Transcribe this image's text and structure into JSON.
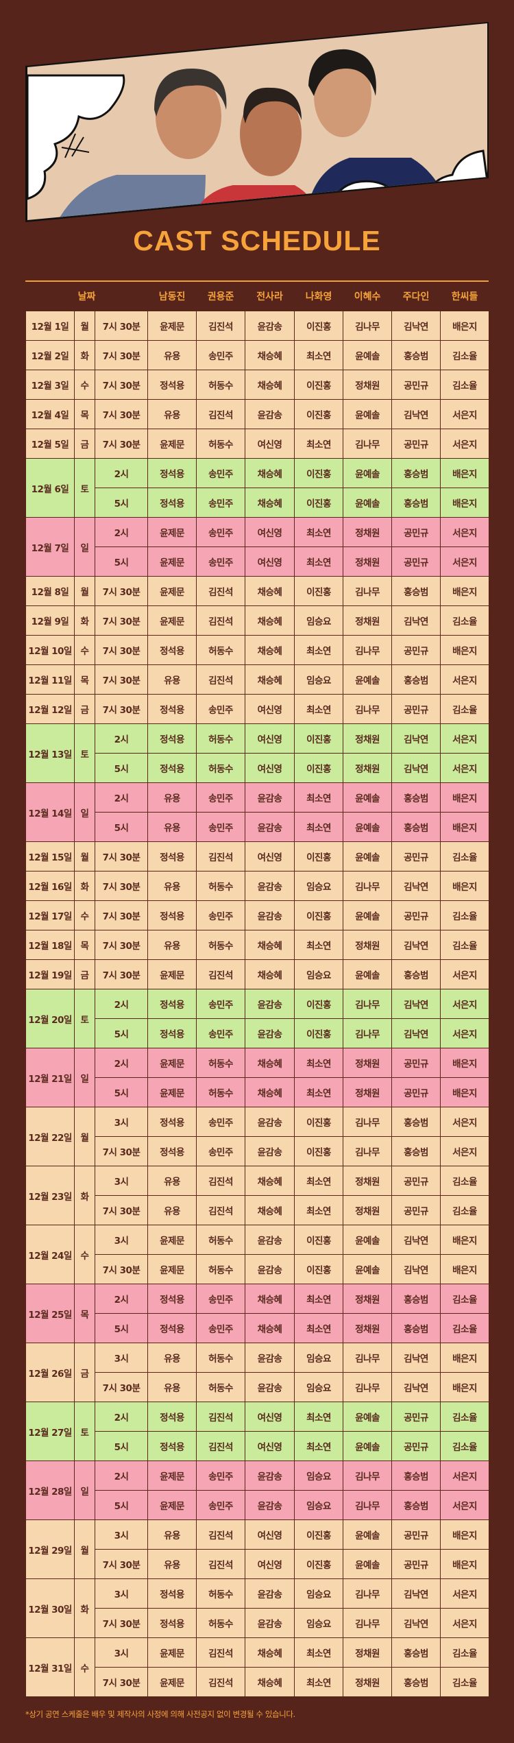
{
  "title": "CAST SCHEDULE",
  "colors": {
    "background": "#57241c",
    "accent": "#f5a33a",
    "weekday": "#f7d7ae",
    "saturday": "#c9eb9b",
    "holiday": "#f5a5b3",
    "text": "#5a2a1e"
  },
  "banner": {
    "image": "three-cast-members-photo",
    "decoration": "comic-cloud-icons"
  },
  "header": {
    "date": "날짜",
    "cast": [
      "남동진",
      "권용준",
      "전사라",
      "나화영",
      "이혜수",
      "주다인",
      "한씨들"
    ]
  },
  "days": [
    {
      "date": "12월 1일",
      "dow": "월",
      "color": "weekday",
      "shows": [
        {
          "time": "7시 30분",
          "cast": [
            "윤제문",
            "김진석",
            "윤감송",
            "이진홍",
            "김나무",
            "김낙연",
            "배은지"
          ]
        }
      ]
    },
    {
      "date": "12월 2일",
      "dow": "화",
      "color": "weekday",
      "shows": [
        {
          "time": "7시 30분",
          "cast": [
            "유용",
            "송민주",
            "채승혜",
            "최소연",
            "윤예솔",
            "홍승범",
            "김소율"
          ]
        }
      ]
    },
    {
      "date": "12월 3일",
      "dow": "수",
      "color": "weekday",
      "shows": [
        {
          "time": "7시 30분",
          "cast": [
            "정석용",
            "허동수",
            "채승혜",
            "이진홍",
            "정채원",
            "공민규",
            "김소율"
          ]
        }
      ]
    },
    {
      "date": "12월 4일",
      "dow": "목",
      "color": "weekday",
      "shows": [
        {
          "time": "7시 30분",
          "cast": [
            "유용",
            "김진석",
            "윤감송",
            "이진홍",
            "윤예솔",
            "김낙연",
            "서은지"
          ]
        }
      ]
    },
    {
      "date": "12월 5일",
      "dow": "금",
      "color": "weekday",
      "shows": [
        {
          "time": "7시 30분",
          "cast": [
            "윤제문",
            "허동수",
            "여신영",
            "최소연",
            "김나무",
            "공민규",
            "서은지"
          ]
        }
      ]
    },
    {
      "date": "12월 6일",
      "dow": "토",
      "color": "saturday",
      "shows": [
        {
          "time": "2시",
          "cast": [
            "정석용",
            "송민주",
            "채승혜",
            "이진홍",
            "윤예솔",
            "홍승범",
            "배은지"
          ]
        },
        {
          "time": "5시",
          "cast": [
            "정석용",
            "송민주",
            "채승혜",
            "이진홍",
            "윤예솔",
            "홍승범",
            "배은지"
          ]
        }
      ]
    },
    {
      "date": "12월 7일",
      "dow": "일",
      "color": "holiday",
      "shows": [
        {
          "time": "2시",
          "cast": [
            "윤제문",
            "송민주",
            "여신영",
            "최소연",
            "정채원",
            "공민규",
            "서은지"
          ]
        },
        {
          "time": "5시",
          "cast": [
            "윤제문",
            "송민주",
            "여신영",
            "최소연",
            "정채원",
            "공민규",
            "서은지"
          ]
        }
      ]
    },
    {
      "date": "12월 8일",
      "dow": "월",
      "color": "weekday",
      "shows": [
        {
          "time": "7시 30분",
          "cast": [
            "윤제문",
            "김진석",
            "채승혜",
            "이진홍",
            "김나무",
            "홍승범",
            "배은지"
          ]
        }
      ]
    },
    {
      "date": "12월 9일",
      "dow": "화",
      "color": "weekday",
      "shows": [
        {
          "time": "7시 30분",
          "cast": [
            "윤제문",
            "김진석",
            "채승혜",
            "임승요",
            "정채원",
            "김낙연",
            "김소율"
          ]
        }
      ]
    },
    {
      "date": "12월 10일",
      "dow": "수",
      "color": "weekday",
      "shows": [
        {
          "time": "7시 30분",
          "cast": [
            "정석용",
            "허동수",
            "채승혜",
            "최소연",
            "김나무",
            "공민규",
            "배은지"
          ]
        }
      ]
    },
    {
      "date": "12월 11일",
      "dow": "목",
      "color": "weekday",
      "shows": [
        {
          "time": "7시 30분",
          "cast": [
            "유용",
            "김진석",
            "채승혜",
            "임승요",
            "윤예솔",
            "홍승범",
            "서은지"
          ]
        }
      ]
    },
    {
      "date": "12월 12일",
      "dow": "금",
      "color": "weekday",
      "shows": [
        {
          "time": "7시 30분",
          "cast": [
            "정석용",
            "송민주",
            "여신영",
            "최소연",
            "김나무",
            "공민규",
            "김소율"
          ]
        }
      ]
    },
    {
      "date": "12월 13일",
      "dow": "토",
      "color": "saturday",
      "shows": [
        {
          "time": "2시",
          "cast": [
            "정석용",
            "허동수",
            "여신영",
            "이진홍",
            "정채원",
            "김낙연",
            "서은지"
          ]
        },
        {
          "time": "5시",
          "cast": [
            "정석용",
            "허동수",
            "여신영",
            "이진홍",
            "정채원",
            "김낙연",
            "서은지"
          ]
        }
      ]
    },
    {
      "date": "12월 14일",
      "dow": "일",
      "color": "holiday",
      "shows": [
        {
          "time": "2시",
          "cast": [
            "유용",
            "송민주",
            "윤감송",
            "최소연",
            "윤예솔",
            "홍승범",
            "배은지"
          ]
        },
        {
          "time": "5시",
          "cast": [
            "유용",
            "송민주",
            "윤감송",
            "최소연",
            "윤예솔",
            "홍승범",
            "배은지"
          ]
        }
      ]
    },
    {
      "date": "12월 15일",
      "dow": "월",
      "color": "weekday",
      "shows": [
        {
          "time": "7시 30분",
          "cast": [
            "정석용",
            "김진석",
            "여신영",
            "이진홍",
            "윤예솔",
            "공민규",
            "김소율"
          ]
        }
      ]
    },
    {
      "date": "12월 16일",
      "dow": "화",
      "color": "weekday",
      "shows": [
        {
          "time": "7시 30분",
          "cast": [
            "유용",
            "허동수",
            "윤감송",
            "임승요",
            "김나무",
            "김낙연",
            "배은지"
          ]
        }
      ]
    },
    {
      "date": "12월 17일",
      "dow": "수",
      "color": "weekday",
      "shows": [
        {
          "time": "7시 30분",
          "cast": [
            "정석용",
            "송민주",
            "윤감송",
            "이진홍",
            "윤예솔",
            "공민규",
            "김소율"
          ]
        }
      ]
    },
    {
      "date": "12월 18일",
      "dow": "목",
      "color": "weekday",
      "shows": [
        {
          "time": "7시 30분",
          "cast": [
            "유용",
            "허동수",
            "채승혜",
            "최소연",
            "정채원",
            "김낙연",
            "김소율"
          ]
        }
      ]
    },
    {
      "date": "12월 19일",
      "dow": "금",
      "color": "weekday",
      "shows": [
        {
          "time": "7시 30분",
          "cast": [
            "윤제문",
            "김진석",
            "채승혜",
            "임승요",
            "윤예솔",
            "홍승범",
            "서은지"
          ]
        }
      ]
    },
    {
      "date": "12월 20일",
      "dow": "토",
      "color": "saturday",
      "shows": [
        {
          "time": "2시",
          "cast": [
            "정석용",
            "송민주",
            "윤감송",
            "이진홍",
            "김나무",
            "김낙연",
            "서은지"
          ]
        },
        {
          "time": "5시",
          "cast": [
            "정석용",
            "송민주",
            "윤감송",
            "이진홍",
            "김나무",
            "김낙연",
            "서은지"
          ]
        }
      ]
    },
    {
      "date": "12월 21일",
      "dow": "일",
      "color": "holiday",
      "shows": [
        {
          "time": "2시",
          "cast": [
            "윤제문",
            "허동수",
            "채승혜",
            "최소연",
            "정채원",
            "공민규",
            "배은지"
          ]
        },
        {
          "time": "5시",
          "cast": [
            "윤제문",
            "허동수",
            "채승혜",
            "최소연",
            "정채원",
            "공민규",
            "배은지"
          ]
        }
      ]
    },
    {
      "date": "12월 22일",
      "dow": "월",
      "color": "weekday",
      "shows": [
        {
          "time": "3시",
          "cast": [
            "정석용",
            "송민주",
            "윤감송",
            "이진홍",
            "김나무",
            "홍승범",
            "서은지"
          ]
        },
        {
          "time": "7시 30분",
          "cast": [
            "정석용",
            "송민주",
            "윤감송",
            "이진홍",
            "김나무",
            "홍승범",
            "서은지"
          ]
        }
      ]
    },
    {
      "date": "12월 23일",
      "dow": "화",
      "color": "weekday",
      "shows": [
        {
          "time": "3시",
          "cast": [
            "유용",
            "김진석",
            "채승혜",
            "최소연",
            "정채원",
            "공민규",
            "김소율"
          ]
        },
        {
          "time": "7시 30분",
          "cast": [
            "유용",
            "김진석",
            "채승혜",
            "최소연",
            "정채원",
            "공민규",
            "김소율"
          ]
        }
      ]
    },
    {
      "date": "12월 24일",
      "dow": "수",
      "color": "weekday",
      "shows": [
        {
          "time": "3시",
          "cast": [
            "윤제문",
            "허동수",
            "윤감송",
            "이진홍",
            "윤예솔",
            "김낙연",
            "배은지"
          ]
        },
        {
          "time": "7시 30분",
          "cast": [
            "윤제문",
            "허동수",
            "윤감송",
            "이진홍",
            "윤예솔",
            "김낙연",
            "배은지"
          ]
        }
      ]
    },
    {
      "date": "12월 25일",
      "dow": "목",
      "color": "holiday",
      "shows": [
        {
          "time": "2시",
          "cast": [
            "정석용",
            "송민주",
            "채승혜",
            "최소연",
            "정채원",
            "홍승범",
            "김소율"
          ]
        },
        {
          "time": "5시",
          "cast": [
            "정석용",
            "송민주",
            "채승혜",
            "최소연",
            "정채원",
            "홍승범",
            "김소율"
          ]
        }
      ]
    },
    {
      "date": "12월 26일",
      "dow": "금",
      "color": "weekday",
      "shows": [
        {
          "time": "3시",
          "cast": [
            "유용",
            "허동수",
            "윤감송",
            "임승요",
            "김나무",
            "김낙연",
            "배은지"
          ]
        },
        {
          "time": "7시 30분",
          "cast": [
            "유용",
            "허동수",
            "윤감송",
            "임승요",
            "김나무",
            "김낙연",
            "배은지"
          ]
        }
      ]
    },
    {
      "date": "12월 27일",
      "dow": "토",
      "color": "saturday",
      "shows": [
        {
          "time": "2시",
          "cast": [
            "정석용",
            "김진석",
            "여신영",
            "최소연",
            "윤예솔",
            "공민규",
            "김소율"
          ]
        },
        {
          "time": "5시",
          "cast": [
            "정석용",
            "김진석",
            "여신영",
            "최소연",
            "윤예솔",
            "공민규",
            "김소율"
          ]
        }
      ]
    },
    {
      "date": "12월 28일",
      "dow": "일",
      "color": "holiday",
      "shows": [
        {
          "time": "2시",
          "cast": [
            "윤제문",
            "송민주",
            "윤감송",
            "임승요",
            "김나무",
            "홍승범",
            "서은지"
          ]
        },
        {
          "time": "5시",
          "cast": [
            "윤제문",
            "송민주",
            "윤감송",
            "임승요",
            "김나무",
            "홍승범",
            "서은지"
          ]
        }
      ]
    },
    {
      "date": "12월 29일",
      "dow": "월",
      "color": "weekday",
      "shows": [
        {
          "time": "3시",
          "cast": [
            "유용",
            "김진석",
            "여신영",
            "이진홍",
            "윤예솔",
            "공민규",
            "배은지"
          ]
        },
        {
          "time": "7시 30분",
          "cast": [
            "유용",
            "김진석",
            "여신영",
            "이진홍",
            "윤예솔",
            "공민규",
            "배은지"
          ]
        }
      ]
    },
    {
      "date": "12월 30일",
      "dow": "화",
      "color": "weekday",
      "shows": [
        {
          "time": "3시",
          "cast": [
            "정석용",
            "허동수",
            "윤감송",
            "임승요",
            "김나무",
            "김낙연",
            "서은지"
          ]
        },
        {
          "time": "7시 30분",
          "cast": [
            "정석용",
            "허동수",
            "윤감송",
            "임승요",
            "김나무",
            "김낙연",
            "서은지"
          ]
        }
      ]
    },
    {
      "date": "12월 31일",
      "dow": "수",
      "color": "weekday",
      "shows": [
        {
          "time": "3시",
          "cast": [
            "윤제문",
            "김진석",
            "채승혜",
            "최소연",
            "정채원",
            "홍승범",
            "김소율"
          ]
        },
        {
          "time": "7시 30분",
          "cast": [
            "윤제문",
            "김진석",
            "채승혜",
            "최소연",
            "정채원",
            "홍승범",
            "김소율"
          ]
        }
      ]
    }
  ],
  "footnote": "*상기 공연 스케줄은 배우 및 제작사의 사정에 의해 사전공지 없이 변경될 수 있습니다."
}
